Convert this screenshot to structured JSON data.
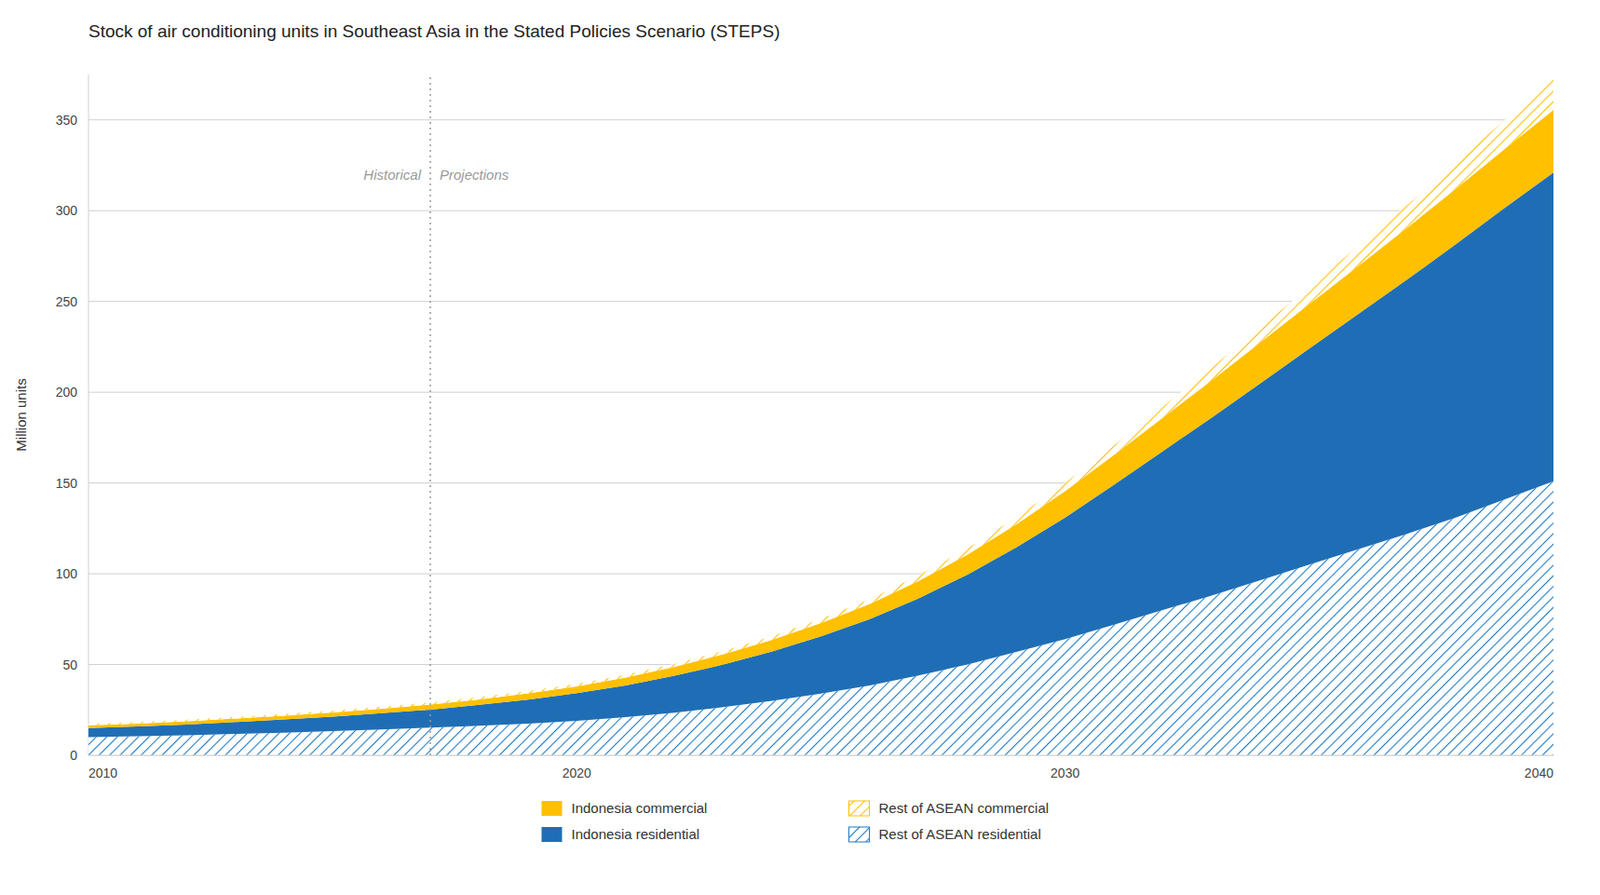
{
  "chart_data": {
    "type": "area",
    "stacked": true,
    "title": "Stock of air conditioning units in Southeast Asia in the Stated Policies Scenario (STEPS)",
    "ylabel": "Million units",
    "xlim": [
      2010,
      2040
    ],
    "ylim": [
      0,
      375
    ],
    "xticks": [
      2010,
      2020,
      2030,
      2040
    ],
    "yticks": [
      0,
      50,
      100,
      150,
      200,
      250,
      300,
      350
    ],
    "grid": true,
    "legend": "bottom",
    "x": [
      2010,
      2011,
      2012,
      2013,
      2014,
      2015,
      2016,
      2017,
      2018,
      2019,
      2020,
      2021,
      2022,
      2023,
      2024,
      2025,
      2026,
      2027,
      2028,
      2029,
      2030,
      2031,
      2032,
      2033,
      2034,
      2035,
      2036,
      2037,
      2038,
      2039,
      2040
    ],
    "series": [
      {
        "name": "Rest of ASEAN residential",
        "color": "#1F7BC8",
        "values": [
          10,
          10.5,
          11.0,
          11.8,
          12.5,
          13.3,
          14.2,
          15.2,
          16.3,
          17.5,
          19.0,
          21.0,
          23.5,
          26.5,
          30.0,
          34.0,
          38.5,
          44.0,
          50.0,
          57.0,
          64.0,
          72.0,
          80.0,
          88.0,
          96.5,
          105.0,
          113.5,
          122.0,
          131.0,
          141.0,
          151.0
        ]
      },
      {
        "name": "Indonesia residential",
        "color": "#1F6EB5",
        "values": [
          5.0,
          5.4,
          5.9,
          6.5,
          7.2,
          8.0,
          9.0,
          10.0,
          11.5,
          13.2,
          15.2,
          17.5,
          20.3,
          23.5,
          27.2,
          31.5,
          36.5,
          42.5,
          49.5,
          57.5,
          67.0,
          77.0,
          87.5,
          98.0,
          108.5,
          119.0,
          129.5,
          140.0,
          150.5,
          160.5,
          170.0
        ]
      },
      {
        "name": "Indonesia commercial",
        "color": "#FFC000",
        "values": [
          1.5,
          1.6,
          1.8,
          1.9,
          2.1,
          2.3,
          2.5,
          2.7,
          3.0,
          3.4,
          3.8,
          4.3,
          4.9,
          5.6,
          6.4,
          7.3,
          8.4,
          9.6,
          11.0,
          12.7,
          14.5,
          16.5,
          18.5,
          20.5,
          22.5,
          24.5,
          26.5,
          28.5,
          30.5,
          32.5,
          34.5
        ]
      },
      {
        "name": "Rest of ASEAN commercial",
        "color": "#FFC000",
        "values": [
          0.8,
          0.85,
          0.9,
          0.95,
          1.0,
          1.05,
          1.1,
          1.15,
          1.2,
          1.3,
          1.4,
          1.55,
          1.7,
          1.9,
          2.1,
          2.35,
          2.65,
          3.0,
          3.4,
          3.9,
          4.5,
          5.2,
          6.0,
          7.0,
          8.2,
          9.5,
          11.0,
          12.5,
          14.0,
          16.0,
          18.0
        ]
      }
    ],
    "annotations": [
      {
        "type": "vline",
        "x": 2017,
        "y": 325,
        "labels": [
          "Historical",
          "Projections"
        ]
      }
    ]
  }
}
